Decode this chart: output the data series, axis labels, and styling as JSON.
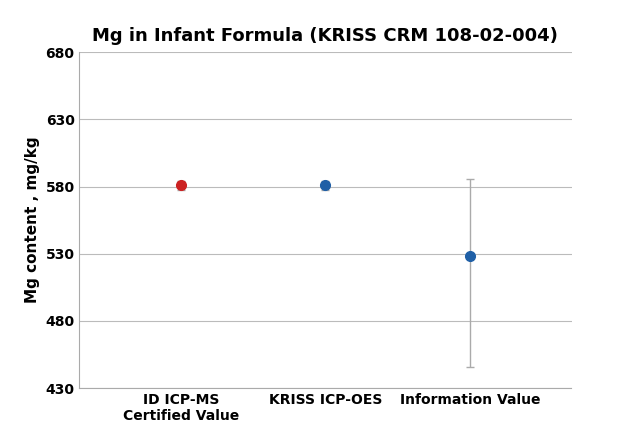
{
  "title": "Mg in Infant Formula (KRISS CRM 108-02-004)",
  "ylabel": "Mg content , mg/kg",
  "categories": [
    "ID ICP-MS\nCertified Value",
    "KRISS ICP-OES",
    "Information Value"
  ],
  "values": [
    581.0,
    581.0,
    528.0
  ],
  "yerr_lower": [
    3.5,
    3.5,
    82.0
  ],
  "yerr_upper": [
    3.5,
    3.5,
    58.0
  ],
  "colors": [
    "#cc2222",
    "#1f5fa6",
    "#1f5fa6"
  ],
  "ecolor": "#aaaaaa",
  "ylim": [
    430,
    680
  ],
  "yticks": [
    430,
    480,
    530,
    580,
    630,
    680
  ],
  "xlim": [
    0.3,
    3.7
  ],
  "marker_size": 7,
  "capsize": 3,
  "grid_color": "#bbbbbb",
  "spine_color": "#aaaaaa",
  "title_fontsize": 13,
  "ylabel_fontsize": 11,
  "tick_fontsize": 10,
  "xlabel_fontsize": 10,
  "background_color": "#ffffff"
}
